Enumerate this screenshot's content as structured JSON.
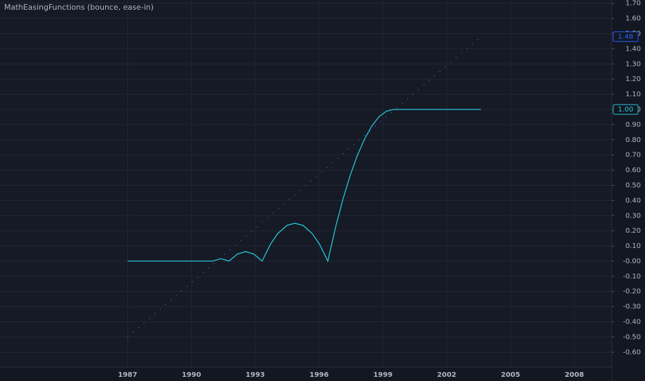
{
  "chart_data": {
    "type": "line",
    "title": "MathEasingFunctions (bounce, ease-in)",
    "xlim": [
      1981.0,
      2009.76
    ],
    "xticks": [
      1987,
      1990,
      1993,
      1996,
      1999,
      2002,
      2005,
      2008
    ],
    "ylim": [
      -0.699,
      1.7215
    ],
    "yticks": [
      {
        "value": 1.7,
        "label": "1.70"
      },
      {
        "value": 1.6,
        "label": "1.60"
      },
      {
        "value": 1.5,
        "label": "1.50"
      },
      {
        "value": 1.4,
        "label": "1.40"
      },
      {
        "value": 1.3,
        "label": "1.30"
      },
      {
        "value": 1.2,
        "label": "1.20"
      },
      {
        "value": 1.1,
        "label": "1.10"
      },
      {
        "value": 1.0,
        "label": "1.00"
      },
      {
        "value": 0.9,
        "label": "0.90"
      },
      {
        "value": 0.8,
        "label": "0.80"
      },
      {
        "value": 0.7,
        "label": "0.70"
      },
      {
        "value": 0.6,
        "label": "0.60"
      },
      {
        "value": 0.5,
        "label": "0.50"
      },
      {
        "value": 0.4,
        "label": "0.40"
      },
      {
        "value": 0.3,
        "label": "0.30"
      },
      {
        "value": 0.2,
        "label": "0.20"
      },
      {
        "value": 0.1,
        "label": "0.10"
      },
      {
        "value": 0,
        "label": "-0.00"
      },
      {
        "value": -0.1,
        "label": "-0.10"
      },
      {
        "value": -0.2,
        "label": "-0.20"
      },
      {
        "value": -0.3,
        "label": "-0.30"
      },
      {
        "value": -0.4,
        "label": "-0.40"
      },
      {
        "value": -0.5,
        "label": "-0.50"
      },
      {
        "value": -0.6,
        "label": "-0.60"
      }
    ],
    "grid": true,
    "series": [
      {
        "color": "#2962ff",
        "style": "dotted",
        "x": [
          1987,
          2003.6
        ],
        "values": [
          -0.5,
          1.48
        ],
        "value_labels": [
          null,
          "1.48"
        ]
      },
      {
        "color": "#26c6da",
        "style": "solid",
        "x": [
          1987,
          1991,
          1991.38,
          1991.77,
          1992.16,
          1992.55,
          1992.93,
          1993.32,
          1993.72,
          1994.06,
          1994.49,
          1994.86,
          1995.25,
          1995.68,
          1996.02,
          1996.41,
          1996.78,
          1997.12,
          1997.46,
          1997.8,
          1998.14,
          1998.48,
          1998.82,
          1999.16,
          1999.5,
          2003.6
        ],
        "values": [
          0,
          0,
          0.016,
          0,
          0.047,
          0.063,
          0.047,
          0,
          0.113,
          0.182,
          0.235,
          0.25,
          0.235,
          0.181,
          0.111,
          0,
          0.226,
          0.407,
          0.564,
          0.698,
          0.806,
          0.891,
          0.952,
          0.988,
          1,
          1
        ],
        "value_labels": [
          null,
          null,
          null,
          null,
          null,
          null,
          null,
          null,
          null,
          null,
          null,
          null,
          null,
          null,
          null,
          null,
          null,
          null,
          null,
          null,
          null,
          null,
          null,
          null,
          null,
          "1.00"
        ]
      }
    ]
  }
}
